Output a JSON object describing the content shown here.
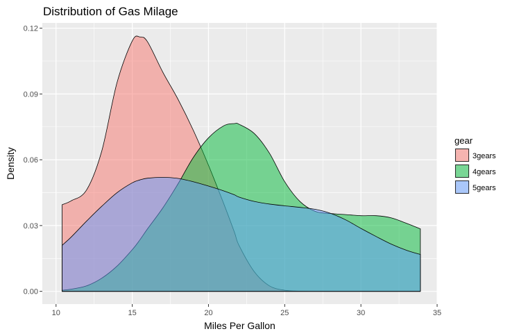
{
  "chart_data": {
    "type": "area",
    "title": "Distribution of Gas Milage",
    "xlabel": "Miles Per Gallon",
    "ylabel": "Density",
    "xlim": [
      9.1,
      35.0
    ],
    "ylim": [
      -0.0058,
      0.1224
    ],
    "xticks": [
      10,
      15,
      20,
      25,
      30,
      35
    ],
    "xtick_labels": [
      "10",
      "15",
      "20",
      "25",
      "30",
      "35"
    ],
    "yticks": [
      0.0,
      0.03,
      0.06,
      0.09,
      0.12
    ],
    "ytick_labels": [
      "0.00",
      "0.03",
      "0.06",
      "0.09",
      "0.12"
    ],
    "grid": true,
    "background": "#ebebeb",
    "legend": {
      "title": "gear",
      "position": "right"
    },
    "x": [
      10.4,
      11.0,
      12.0,
      13.0,
      14.0,
      15.0,
      15.5,
      16.0,
      17.0,
      18.0,
      19.0,
      20.0,
      21.0,
      21.7,
      22.0,
      23.0,
      24.0,
      25.0,
      26.0,
      27.0,
      28.0,
      29.0,
      30.0,
      31.0,
      32.0,
      33.0,
      33.9
    ],
    "series": [
      {
        "name": "3gears",
        "color": "#f8766d",
        "values": [
          0.0395,
          0.0413,
          0.0462,
          0.064,
          0.0952,
          0.1142,
          0.116,
          0.1138,
          0.1,
          0.0876,
          0.0735,
          0.0575,
          0.04,
          0.027,
          0.021,
          0.009,
          0.0025,
          0.0005,
          0.0001,
          0,
          0,
          0,
          0,
          0,
          0,
          0,
          0
        ]
      },
      {
        "name": "4gears",
        "color": "#00ba38",
        "values": [
          0.0005,
          0.001,
          0.0025,
          0.006,
          0.0115,
          0.019,
          0.0235,
          0.0285,
          0.038,
          0.049,
          0.061,
          0.07,
          0.0755,
          0.0765,
          0.0762,
          0.072,
          0.063,
          0.05,
          0.041,
          0.0365,
          0.0355,
          0.035,
          0.0345,
          0.0345,
          0.0335,
          0.031,
          0.0285
        ]
      },
      {
        "name": "5gears",
        "color": "#619cff",
        "values": [
          0.021,
          0.0248,
          0.032,
          0.0388,
          0.045,
          0.0495,
          0.0508,
          0.0516,
          0.052,
          0.0515,
          0.05,
          0.048,
          0.0458,
          0.044,
          0.043,
          0.041,
          0.0398,
          0.039,
          0.0383,
          0.0374,
          0.0356,
          0.0326,
          0.0287,
          0.025,
          0.0215,
          0.0187,
          0.0168
        ]
      }
    ]
  }
}
